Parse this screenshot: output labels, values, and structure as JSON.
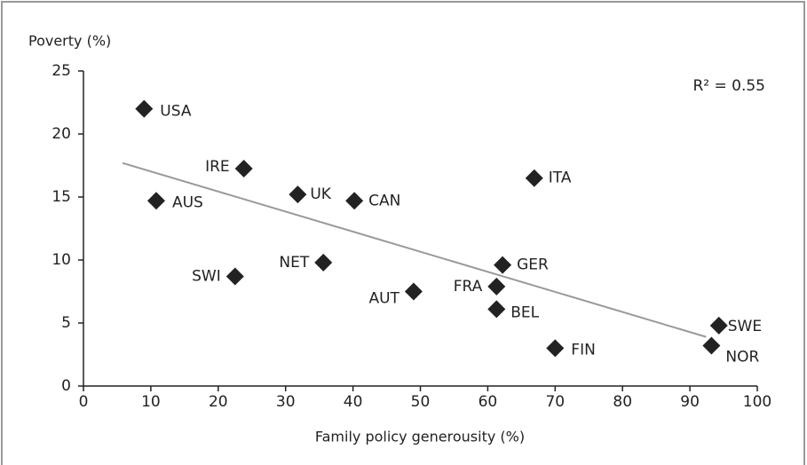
{
  "chart_data": {
    "type": "scatter",
    "x_label": "Family policy generousity (%)",
    "y_label": "Poverty (%)",
    "annotation": "R² = 0.55",
    "labels": [
      "USA",
      "IRE",
      "AUS",
      "UK",
      "CAN",
      "ITA",
      "NET",
      "SWI",
      "GER",
      "FRA",
      "AUT",
      "BEL",
      "FIN",
      "SWE",
      "NOR"
    ],
    "x": [
      9,
      23.8,
      10.8,
      31.8,
      40.2,
      66.9,
      35.6,
      22.5,
      62.2,
      61.3,
      49.0,
      61.3,
      70.0,
      94.3,
      93.2
    ],
    "values": [
      22.0,
      17.25,
      14.7,
      15.2,
      14.7,
      16.5,
      9.8,
      8.7,
      9.6,
      7.9,
      7.5,
      6.1,
      3.0,
      4.8,
      3.2
    ],
    "color": "#222222",
    "trendline": {
      "x": [
        5.8,
        92.4
      ],
      "y": [
        17.7,
        3.9
      ],
      "color": "#999999"
    },
    "xlim": [
      0,
      100
    ],
    "xticks": [
      0,
      10,
      20,
      30,
      40,
      50,
      60,
      70,
      80,
      90,
      100
    ],
    "ylim": [
      0,
      25
    ],
    "yticks": [
      0,
      5,
      10,
      15,
      20,
      25
    ]
  }
}
